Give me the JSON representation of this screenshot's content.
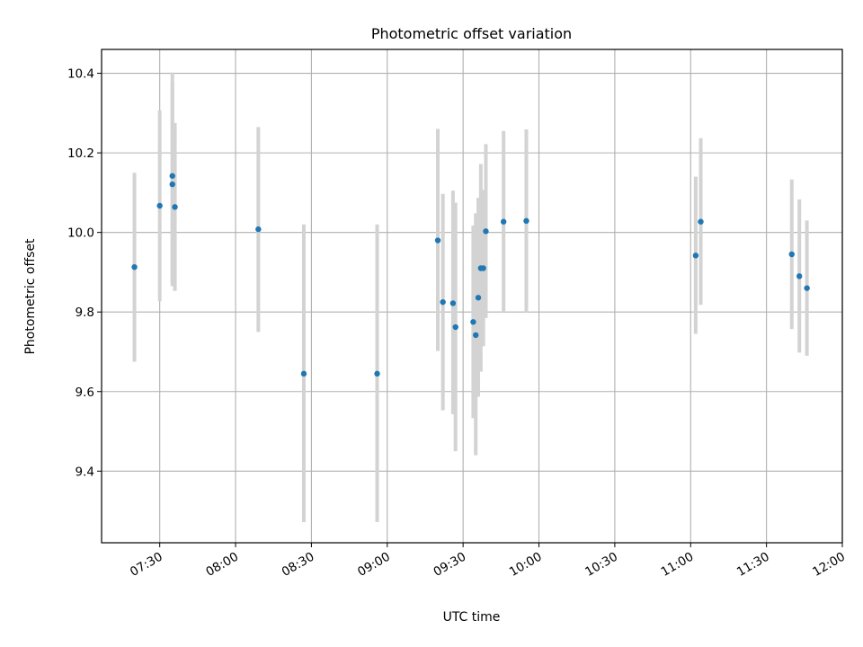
{
  "chart_data": {
    "type": "scatter",
    "title": "Photometric offset variation",
    "xlabel": "UTC time",
    "ylabel": "Photometric offset",
    "x_axis_type": "time",
    "xlim": [
      "07:07",
      "12:00"
    ],
    "ylim": [
      9.22,
      10.46
    ],
    "x_ticks": [
      "07:30",
      "08:00",
      "08:30",
      "09:00",
      "09:30",
      "10:00",
      "10:30",
      "11:00",
      "11:30",
      "12:00"
    ],
    "y_ticks": [
      9.4,
      9.6,
      9.8,
      10.0,
      10.2,
      10.4
    ],
    "grid": true,
    "error_bars": true,
    "colors": {
      "points": "#1f77b4",
      "error_bars": "#d3d3d3",
      "grid": "#b0b0b0"
    },
    "points": [
      {
        "x": "07:20",
        "y": 9.913,
        "low": 9.675,
        "high": 10.15
      },
      {
        "x": "07:30",
        "y": 10.067,
        "low": 9.827,
        "high": 10.307
      },
      {
        "x": "07:35",
        "y": 10.142,
        "low": 9.873,
        "high": 10.402
      },
      {
        "x": "07:35",
        "y": 10.121,
        "low": 9.865,
        "high": 10.377
      },
      {
        "x": "07:36",
        "y": 10.064,
        "low": 9.853,
        "high": 10.275
      },
      {
        "x": "08:09",
        "y": 10.008,
        "low": 9.75,
        "high": 10.265
      },
      {
        "x": "08:27",
        "y": 9.645,
        "low": 9.272,
        "high": 10.02
      },
      {
        "x": "08:56",
        "y": 9.645,
        "low": 9.272,
        "high": 10.02
      },
      {
        "x": "09:20",
        "y": 9.98,
        "low": 9.702,
        "high": 10.26
      },
      {
        "x": "09:22",
        "y": 9.825,
        "low": 9.553,
        "high": 10.097
      },
      {
        "x": "09:26",
        "y": 9.822,
        "low": 9.543,
        "high": 10.105
      },
      {
        "x": "09:27",
        "y": 9.762,
        "low": 9.45,
        "high": 10.075
      },
      {
        "x": "09:34",
        "y": 9.775,
        "low": 9.533,
        "high": 10.017
      },
      {
        "x": "09:35",
        "y": 9.742,
        "low": 9.44,
        "high": 10.048
      },
      {
        "x": "09:36",
        "y": 9.836,
        "low": 9.587,
        "high": 10.087
      },
      {
        "x": "09:37",
        "y": 9.91,
        "low": 9.65,
        "high": 10.172
      },
      {
        "x": "09:38",
        "y": 9.91,
        "low": 9.714,
        "high": 10.107
      },
      {
        "x": "09:39",
        "y": 10.003,
        "low": 9.785,
        "high": 10.222
      },
      {
        "x": "09:46",
        "y": 10.027,
        "low": 9.8,
        "high": 10.255
      },
      {
        "x": "09:55",
        "y": 10.029,
        "low": 9.8,
        "high": 10.259
      },
      {
        "x": "11:02",
        "y": 9.942,
        "low": 9.745,
        "high": 10.14
      },
      {
        "x": "11:04",
        "y": 10.027,
        "low": 9.818,
        "high": 10.237
      },
      {
        "x": "11:40",
        "y": 9.945,
        "low": 9.757,
        "high": 10.133
      },
      {
        "x": "11:43",
        "y": 9.89,
        "low": 9.698,
        "high": 10.083
      },
      {
        "x": "11:46",
        "y": 9.86,
        "low": 9.69,
        "high": 10.03
      }
    ]
  }
}
